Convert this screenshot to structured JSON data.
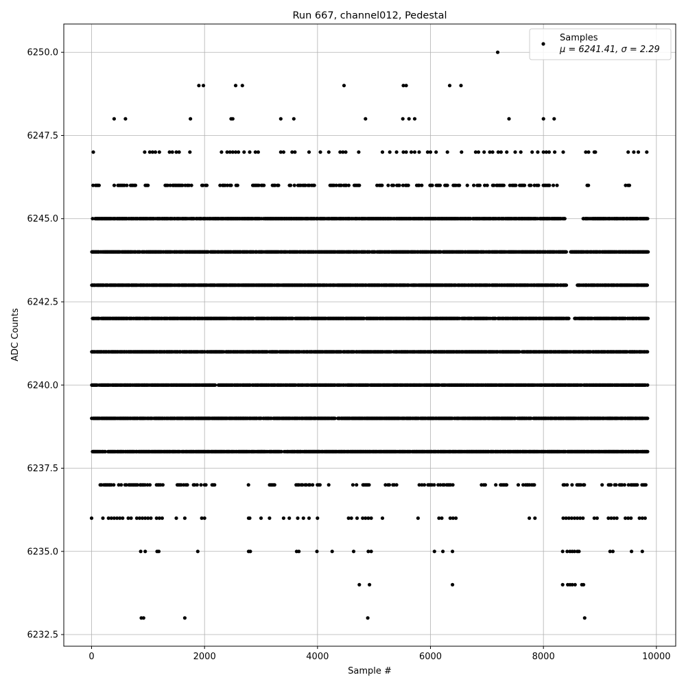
{
  "chart_data": {
    "type": "scatter",
    "title": "Run 667, channel012, Pedestal",
    "xlabel": "Sample #",
    "ylabel": "ADC Counts",
    "xlim": [
      -492,
      10342
    ],
    "ylim": [
      6232.15,
      6250.85
    ],
    "xticks": [
      0,
      2000,
      4000,
      6000,
      8000,
      10000
    ],
    "xtick_labels": [
      "0",
      "2000",
      "4000",
      "6000",
      "8000",
      "10000"
    ],
    "yticks": [
      6232.5,
      6235.0,
      6237.5,
      6240.0,
      6242.5,
      6245.0,
      6247.5,
      6250.0
    ],
    "ytick_labels": [
      "6232.5",
      "6235.0",
      "6237.5",
      "6240.0",
      "6242.5",
      "6245.0",
      "6247.5",
      "6250.0"
    ],
    "grid": true,
    "legend": {
      "placement": "top-right",
      "entries": [
        "Samples",
        "μ = 6241.41, σ = 2.29"
      ]
    },
    "marker_color": "#000000",
    "dense_levels": [
      {
        "adc": 6245,
        "ranges": [
          [
            0,
            8400
          ],
          [
            8700,
            9850
          ]
        ]
      },
      {
        "adc": 6244,
        "ranges": [
          [
            0,
            8400
          ],
          [
            8480,
            9850
          ]
        ]
      },
      {
        "adc": 6243,
        "ranges": [
          [
            0,
            8400
          ],
          [
            8600,
            9850
          ]
        ]
      },
      {
        "adc": 6242,
        "ranges": [
          [
            0,
            8450
          ],
          [
            8550,
            9850
          ]
        ]
      },
      {
        "adc": 6241,
        "ranges": [
          [
            0,
            9850
          ]
        ]
      },
      {
        "adc": 6240,
        "ranges": [
          [
            0,
            9850
          ]
        ]
      },
      {
        "adc": 6239,
        "ranges": [
          [
            0,
            9850
          ]
        ]
      },
      {
        "adc": 6238,
        "ranges": [
          [
            0,
            9850
          ]
        ]
      },
      {
        "adc": 6246,
        "ranges": [
          [
            0,
            150
          ],
          [
            400,
            800
          ],
          [
            950,
            1050
          ],
          [
            1300,
            1800
          ],
          [
            1950,
            2100
          ],
          [
            2250,
            2600
          ],
          [
            2850,
            3050
          ],
          [
            3200,
            3350
          ],
          [
            3500,
            3950
          ],
          [
            4200,
            4600
          ],
          [
            4650,
            4750
          ],
          [
            5050,
            5150
          ],
          [
            5250,
            5850
          ],
          [
            5900,
            6050
          ],
          [
            6100,
            6300
          ],
          [
            6400,
            6550
          ],
          [
            6650,
            7050
          ],
          [
            7100,
            7300
          ],
          [
            7400,
            8250
          ],
          [
            8750,
            8800
          ],
          [
            9450,
            9550
          ]
        ]
      },
      {
        "adc": 6237,
        "ranges": [
          [
            150,
            1050
          ],
          [
            1150,
            1300
          ],
          [
            1450,
            1700
          ],
          [
            1800,
            2200
          ],
          [
            2750,
            2850
          ],
          [
            3150,
            3250
          ],
          [
            3600,
            4200
          ],
          [
            4600,
            4700
          ],
          [
            4800,
            4950
          ],
          [
            5200,
            5400
          ],
          [
            5800,
            6450
          ],
          [
            6900,
            7000
          ],
          [
            7150,
            7350
          ],
          [
            7550,
            7850
          ],
          [
            8350,
            8750
          ],
          [
            8950,
            9050
          ],
          [
            9150,
            9850
          ]
        ]
      }
    ],
    "sparse_points": [
      {
        "adc": 6250,
        "x": [
          7190
        ]
      },
      {
        "adc": 6249,
        "x": [
          1900,
          1980,
          2550,
          2670,
          4470,
          5520,
          5570,
          6340,
          6540
        ]
      },
      {
        "adc": 6248,
        "x": [
          400,
          600,
          1750,
          2470,
          2500,
          3350,
          3580,
          4850,
          5510,
          5620,
          5720,
          7390,
          8000,
          8190
        ]
      },
      {
        "adc": 6247,
        "x": [
          30,
          940,
          1030,
          1080,
          1130,
          1200,
          1380,
          1430,
          1500,
          1550,
          1740,
          2300,
          2400,
          2450,
          2500,
          2550,
          2600,
          2700,
          2800,
          2900,
          2950,
          3350,
          3400,
          3550,
          3600,
          3850,
          4050,
          4200,
          4400,
          4450,
          4500,
          4730,
          5150,
          5280,
          5400,
          5520,
          5570,
          5660,
          5720,
          5800,
          5950,
          6000,
          6100,
          6300,
          6550,
          6800,
          6850,
          6950,
          7050,
          7100,
          7200,
          7250,
          7350,
          7500,
          7600,
          7800,
          7900,
          8000,
          8050,
          8100,
          8200,
          8350,
          8750,
          8800,
          8900,
          8920,
          9500,
          9600,
          9680,
          9830
        ]
      },
      {
        "adc": 6236,
        "x": [
          0,
          200,
          300,
          350,
          400,
          450,
          500,
          550,
          650,
          700,
          800,
          850,
          900,
          950,
          1000,
          1050,
          1150,
          1200,
          1250,
          1500,
          1650,
          1950,
          2000,
          2780,
          2800,
          3000,
          3150,
          3400,
          3500,
          3650,
          3750,
          3850,
          4000,
          4550,
          4600,
          4700,
          4800,
          4850,
          4900,
          4950,
          5150,
          5780,
          6150,
          6200,
          6350,
          6400,
          6450,
          7750,
          7850,
          8350,
          8400,
          8450,
          8500,
          8550,
          8600,
          8650,
          8700,
          8900,
          8950,
          9150,
          9200,
          9250,
          9300,
          9450,
          9500,
          9550,
          9700,
          9750,
          9800
        ]
      },
      {
        "adc": 6235,
        "x": [
          870,
          950,
          1160,
          1190,
          1880,
          2780,
          2810,
          3630,
          3670,
          3990,
          4260,
          4640,
          4900,
          4950,
          6070,
          6220,
          6390,
          8340,
          8420,
          8470,
          8510,
          8550,
          8600,
          8630,
          9180,
          9230,
          9560,
          9750
        ]
      },
      {
        "adc": 6234,
        "x": [
          4740,
          4920,
          6390,
          8340,
          8430,
          8470,
          8510,
          8560,
          8680,
          8710
        ]
      },
      {
        "adc": 6233,
        "x": [
          880,
          920,
          1650,
          4890,
          8730
        ]
      }
    ]
  }
}
